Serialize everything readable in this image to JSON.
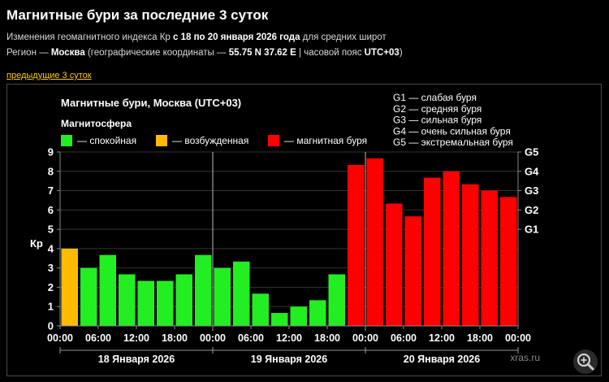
{
  "page": {
    "title": "Магнитные бури за последние 3 суток",
    "subtitle1": {
      "pre": "Изменения геомагнитного индекса Кр ",
      "bold": "с 18 по 20 января 2026 года",
      "post": " для средних широт"
    },
    "subtitle2": {
      "pre": "Регион — ",
      "region": "Москва",
      "mid": " (географические координаты — ",
      "coords": "55.75 N 37.62 E",
      "mid2": " | часовой пояс ",
      "tz": "UTC+03",
      "post": ")"
    },
    "prev_link": "предыдущие 3 суток",
    "watermark": "xras.ru"
  },
  "chart_data": {
    "type": "bar",
    "title": "Магнитные бури, Москва (UTC+03)",
    "legend_title": "Магнитосфера",
    "legend": [
      {
        "label": "— спокойная",
        "color": "#22ee22"
      },
      {
        "label": "— возбужденная",
        "color": "#ffbb00"
      },
      {
        "label": "— магнитная буря",
        "color": "#ff0000"
      }
    ],
    "storm_levels": [
      "G1 — слабая буря",
      "G2 — средняя буря",
      "G3 — сильная буря",
      "G4 — очень сильная буря",
      "G5 — экстремальная буря"
    ],
    "ylabel": "Кр",
    "ylim": [
      0,
      9
    ],
    "yticks": [
      "0",
      "1",
      "2",
      "3",
      "4",
      "5",
      "6",
      "7",
      "8",
      "9"
    ],
    "right_ticks": [
      {
        "label": "G1",
        "value": 5
      },
      {
        "label": "G2",
        "value": 6
      },
      {
        "label": "G3",
        "value": 7
      },
      {
        "label": "G4",
        "value": 8
      },
      {
        "label": "G5",
        "value": 9
      }
    ],
    "xticks": [
      "00:00",
      "06:00",
      "12:00",
      "18:00",
      "00:00",
      "06:00",
      "12:00",
      "18:00",
      "00:00",
      "06:00",
      "12:00",
      "18:00",
      "00:00"
    ],
    "days": [
      "18 Января 2026",
      "19 Января 2026",
      "20 Января 2026"
    ],
    "values": [
      4.0,
      3.0,
      3.67,
      2.67,
      2.33,
      2.33,
      2.67,
      3.67,
      3.0,
      3.33,
      1.67,
      0.67,
      1.0,
      1.33,
      2.67,
      8.33,
      8.67,
      6.33,
      5.67,
      7.67,
      8.0,
      7.33,
      7.0,
      6.67
    ],
    "colors": {
      "quiet": "#22ee22",
      "active": "#ffbb00",
      "storm": "#ff0000",
      "grid": "#333333",
      "divider": "#bbbbbb"
    },
    "grid": true
  }
}
